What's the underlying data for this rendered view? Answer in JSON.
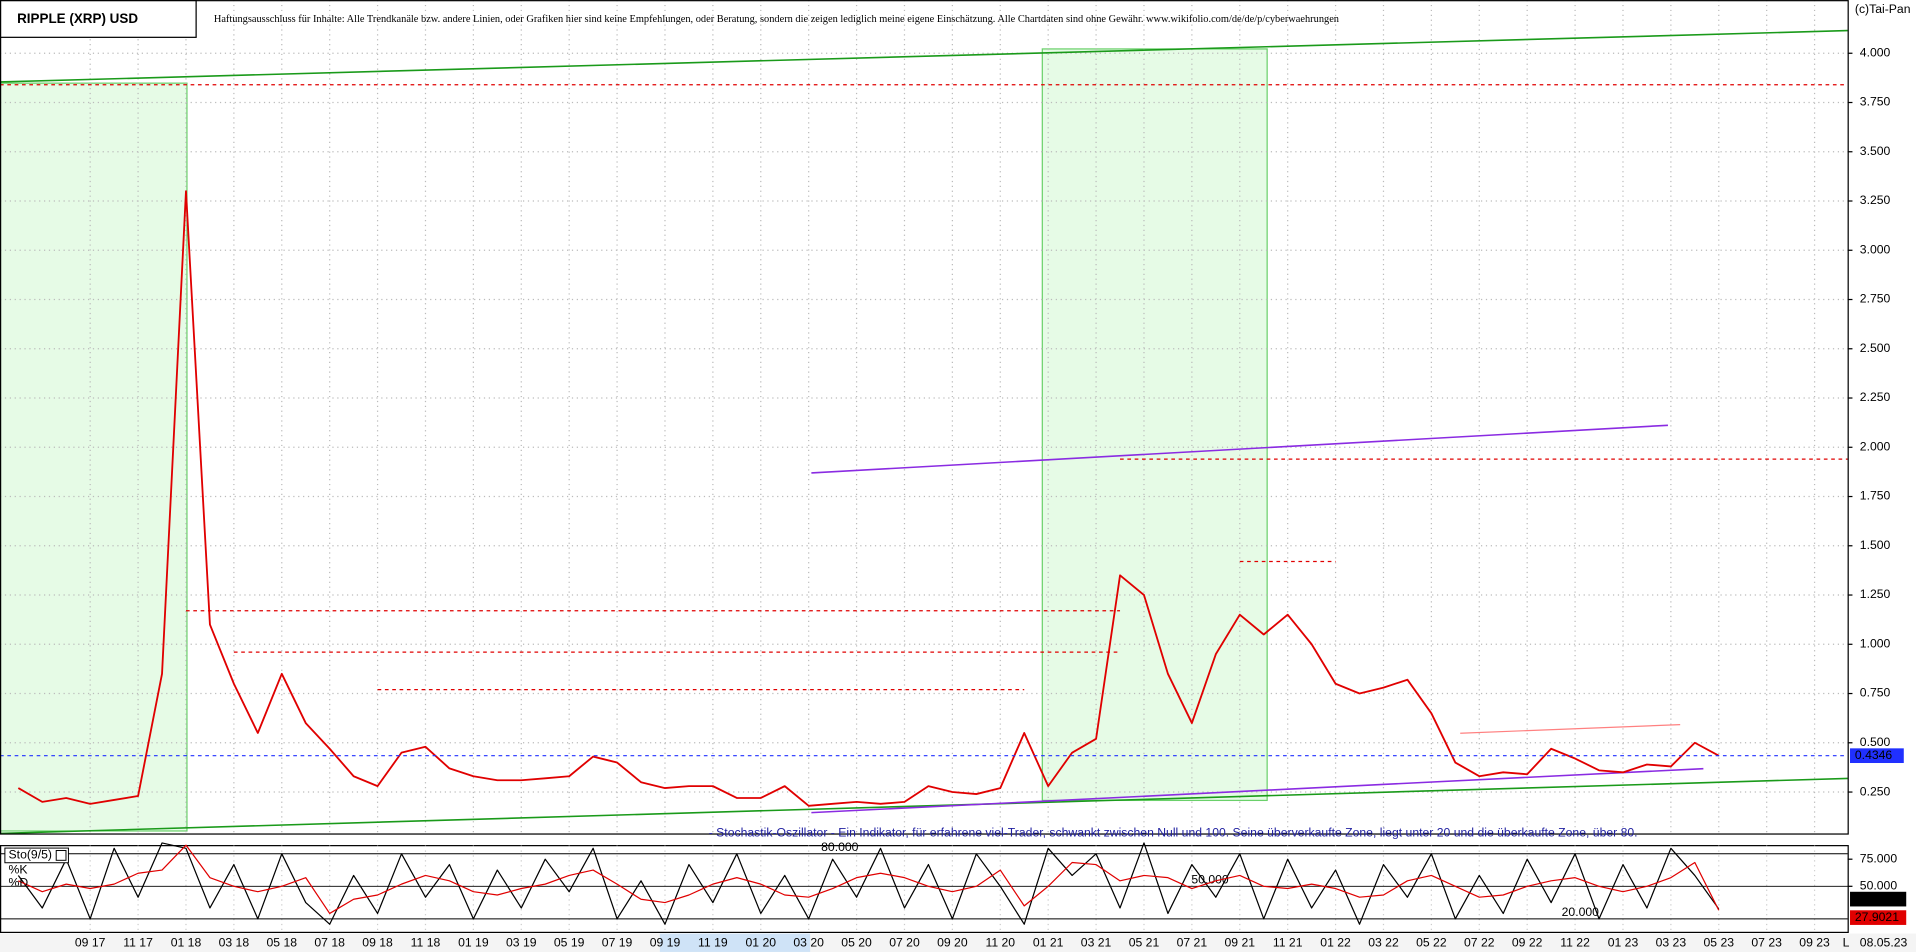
{
  "chart_data": [
    {
      "type": "line",
      "title": "RIPPLE (XRP) USD",
      "disclaimer": "Haftungsausschluss für Inhalte: Alle Trendkanäle bzw. andere Linien, oder Grafiken hier sind keine Empfehlungen, oder Beratung, sondern die zeigen lediglich meine eigene Einschätzung. Alle Chartdaten sind ohne Gewähr. www.wikifolio.com/de/de/p/cyberwaehrungen",
      "source": "(c)Tai-Pan",
      "date_label": "08.05.23",
      "corner_label": "L",
      "categories": [
        null,
        null,
        null,
        "09 17",
        null,
        "11 17",
        null,
        "01 18",
        null,
        "03 18",
        null,
        "05 18",
        null,
        "07 18",
        null,
        "09 18",
        null,
        "11 18",
        null,
        "01 19",
        null,
        "03 19",
        null,
        "05 19",
        null,
        "07 19",
        null,
        "09 19",
        null,
        "11 19",
        null,
        "01 20",
        null,
        "03 20",
        null,
        "05 20",
        null,
        "07 20",
        null,
        "09 20",
        null,
        "11 20",
        null,
        "01 21",
        null,
        "03 21",
        null,
        "05 21",
        null,
        "07 21",
        null,
        "09 21",
        null,
        "11 21",
        null,
        "01 22",
        null,
        "03 22",
        null,
        "05 22",
        null,
        "07 22",
        null,
        "09 22",
        null,
        "11 22",
        null,
        "01 23",
        null,
        "03 23",
        null,
        "05 23",
        null,
        "07 23",
        null,
        "09 23"
      ],
      "series": [
        {
          "name": "RIPPLE (XRP) USD",
          "color": "#e00000",
          "values": [
            0.27,
            0.2,
            0.22,
            0.19,
            0.21,
            0.23,
            0.85,
            3.3,
            1.1,
            0.8,
            0.55,
            0.85,
            0.6,
            0.47,
            0.33,
            0.28,
            0.45,
            0.48,
            0.37,
            0.33,
            0.31,
            0.31,
            0.32,
            0.33,
            0.43,
            0.4,
            0.3,
            0.27,
            0.28,
            0.28,
            0.22,
            0.22,
            0.28,
            0.18,
            0.19,
            0.2,
            0.19,
            0.2,
            0.28,
            0.25,
            0.24,
            0.27,
            0.55,
            0.28,
            0.45,
            0.52,
            1.35,
            1.25,
            0.85,
            0.6,
            0.95,
            1.15,
            1.05,
            1.15,
            1.0,
            0.8,
            0.75,
            0.78,
            0.82,
            0.65,
            0.4,
            0.33,
            0.35,
            0.34,
            0.47,
            0.42,
            0.36,
            0.35,
            0.39,
            0.38,
            0.5,
            0.4346,
            null,
            null,
            null,
            null
          ]
        }
      ],
      "levels": [
        {
          "value": 3.84
        },
        {
          "value": 1.94,
          "from": "04 21"
        },
        {
          "value": 1.17,
          "from": "01 18",
          "to": "04 21"
        },
        {
          "value": 0.96,
          "from": "03 18",
          "to": "04 21"
        },
        {
          "value": 0.77,
          "from": "09 18",
          "to": "12 20"
        },
        {
          "value": 1.42,
          "from": "09 21",
          "to": "01 22"
        }
      ],
      "ylim": [
        0.04,
        4.27
      ],
      "yticks": [
        {
          "value": 0.25,
          "label": "0.250"
        },
        {
          "value": 0.5,
          "label": "0.500"
        },
        {
          "value": 0.75,
          "label": "0.750"
        },
        {
          "value": 1,
          "label": "1.000"
        },
        {
          "value": 1.25,
          "label": "1.250"
        },
        {
          "value": 1.5,
          "label": "1.500"
        },
        {
          "value": 1.75,
          "label": "1.750"
        },
        {
          "value": 2,
          "label": "2.000"
        },
        {
          "value": 2.25,
          "label": "2.250"
        },
        {
          "value": 2.5,
          "label": "2.500"
        },
        {
          "value": 2.75,
          "label": "2.750"
        },
        {
          "value": 3,
          "label": "3.000"
        },
        {
          "value": 3.25,
          "label": "3.250"
        },
        {
          "value": 3.5,
          "label": "3.500"
        },
        {
          "value": 3.75,
          "label": "3.750"
        },
        {
          "value": 4,
          "label": "4.000"
        }
      ],
      "grid": true
    },
    {
      "type": "line",
      "title": "Sto(9/5)",
      "annotation": "- Stochastik-Oszillator - Ein Indikator, für erfahrene viel-Trader, schwankt zwischen Null und 100. Seine überverkaufte Zone, liegt unter 20 und die überkaufte Zone, über 80.",
      "series": [
        {
          "name": "%K",
          "color": "#000000",
          "values": [
            60,
            30,
            75,
            20,
            85,
            40,
            90,
            85,
            30,
            70,
            20,
            80,
            35,
            15,
            60,
            25,
            80,
            40,
            70,
            20,
            65,
            30,
            75,
            45,
            85,
            20,
            55,
            15,
            70,
            35,
            80,
            25,
            60,
            20,
            75,
            40,
            85,
            30,
            70,
            20,
            80,
            50,
            15,
            85,
            60,
            80,
            30,
            90,
            25,
            70,
            40,
            80,
            20,
            75,
            30,
            65,
            15,
            70,
            40,
            80,
            20,
            60,
            25,
            75,
            35,
            80,
            20,
            70,
            30,
            85,
            60,
            29.1726,
            null,
            null,
            null,
            null
          ]
        },
        {
          "name": "%D",
          "color": "#e00000",
          "values": [
            55,
            45,
            52,
            48,
            52,
            62,
            65,
            88,
            58,
            50,
            45,
            50,
            58,
            25,
            38,
            42,
            52,
            60,
            55,
            45,
            42,
            48,
            52,
            60,
            65,
            52,
            38,
            35,
            42,
            52,
            58,
            52,
            42,
            40,
            48,
            58,
            62,
            58,
            50,
            45,
            50,
            65,
            32,
            50,
            72,
            70,
            55,
            60,
            58,
            48,
            55,
            60,
            50,
            48,
            52,
            48,
            40,
            42,
            55,
            60,
            50,
            40,
            42,
            50,
            55,
            58,
            50,
            45,
            50,
            58,
            72,
            27.9021,
            null,
            null,
            null,
            null
          ]
        }
      ],
      "levels": [
        {
          "value": 80,
          "label": "80.000"
        },
        {
          "value": 50,
          "label": "50.000"
        },
        {
          "value": 20,
          "label": "20.000"
        }
      ],
      "ylim": [
        7.5,
        87.5
      ],
      "yticks": [
        {
          "value": 75,
          "label": "75.000"
        },
        {
          "value": 50,
          "label": "50.000"
        }
      ]
    }
  ]
}
